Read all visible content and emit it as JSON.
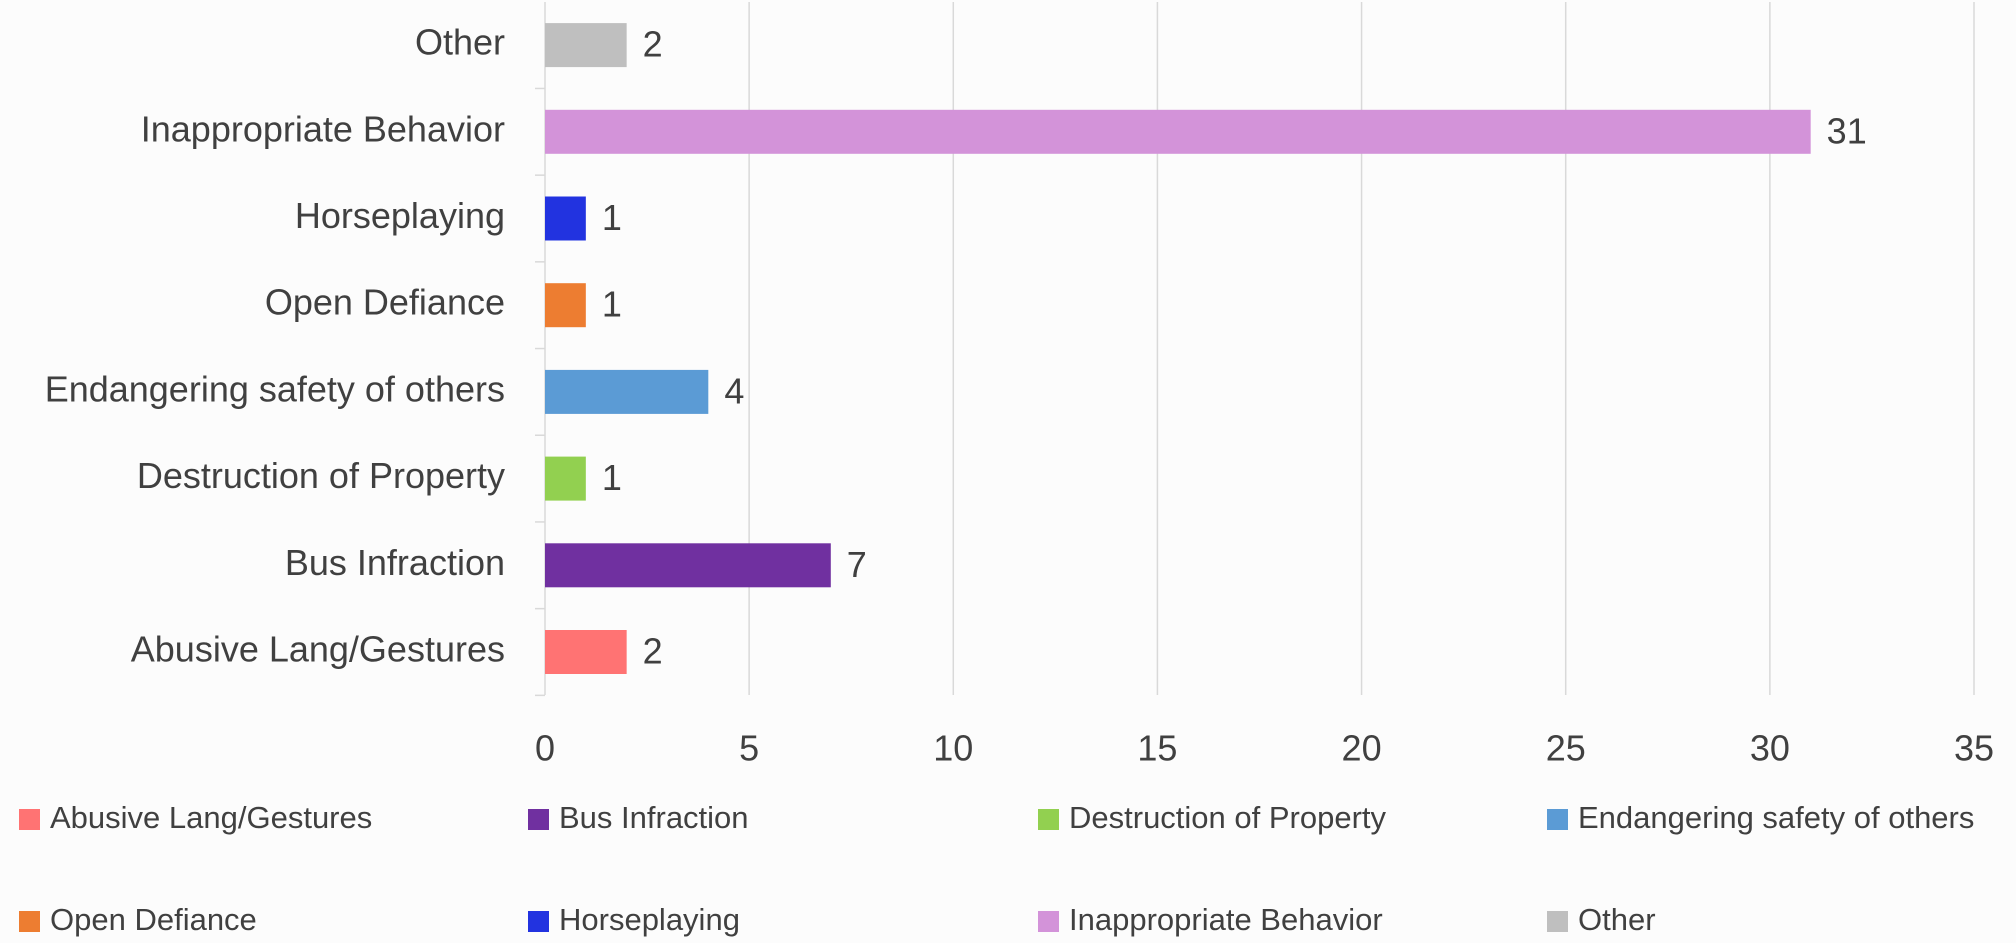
{
  "chart_data": {
    "type": "bar",
    "orientation": "horizontal",
    "categories": [
      "Abusive Lang/Gestures",
      "Bus Infraction",
      "Destruction of Property",
      "Endangering safety of others",
      "Open Defiance",
      "Horseplaying",
      "Inappropriate Behavior",
      "Other"
    ],
    "values": [
      2,
      7,
      1,
      4,
      1,
      1,
      31,
      2
    ],
    "colors": [
      "#ff7373",
      "#7030a0",
      "#92d050",
      "#5b9bd5",
      "#ed7d31",
      "#2233e0",
      "#d393d9",
      "#bfbfbf"
    ],
    "xlim": [
      0,
      35
    ],
    "xticks": [
      0,
      5,
      10,
      15,
      20,
      25,
      30,
      35
    ],
    "grid": true,
    "legend": "bottom"
  }
}
